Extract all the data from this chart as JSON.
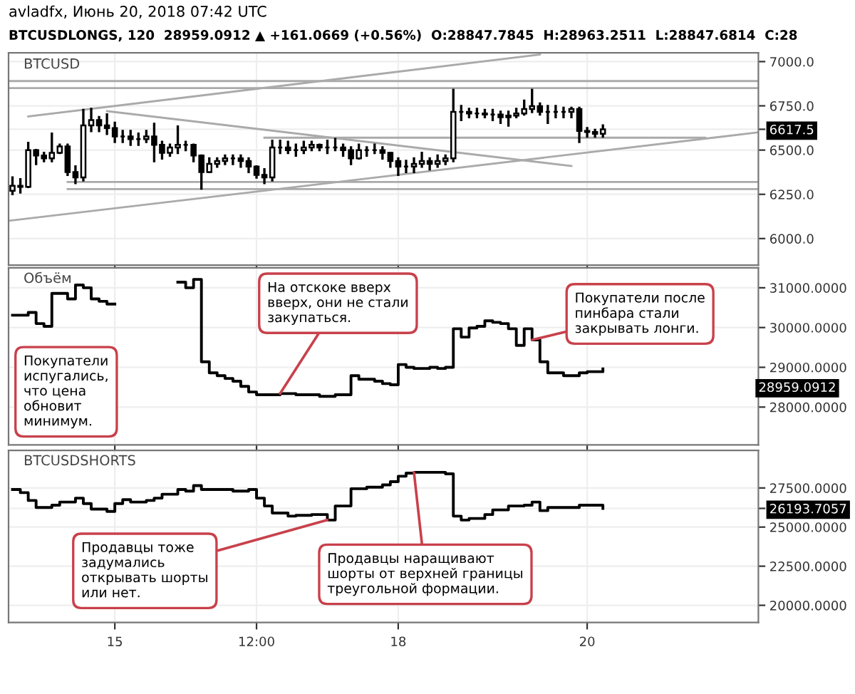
{
  "chart_data": [
    {
      "type": "other",
      "title": "avladfx, Июнь 20, 2018 07:42 UTC",
      "subtitle": "BTCUSDLONGS, 120  28959.0912 ▲ +161.0669 (+0.56%)  O:28847.7845  H:28963.2511  L:28847.6814  C:28"
    },
    {
      "type": "candlestick",
      "title": "BTCUSD",
      "color": "#000000",
      "tick_labels": "y",
      "grid": true,
      "xlim": [
        "2018-06-13T21:00",
        "2018-06-21T19:30"
      ],
      "ylim": [
        5850,
        7050
      ],
      "yticks": [
        {
          "value": 6000,
          "label": "6000.0"
        },
        {
          "value": 6250,
          "label": "6250.0"
        },
        {
          "value": 6500,
          "label": "6500.0"
        },
        {
          "value": 6617.5,
          "label": "6617.5"
        },
        {
          "value": 6750,
          "label": "6750.0"
        },
        {
          "value": 7000,
          "label": "7000.0"
        }
      ],
      "x": [
        "2018-06-13T22:00",
        "2018-06-14T00:00",
        "2018-06-14T02:00",
        "2018-06-14T04:00",
        "2018-06-14T06:00",
        "2018-06-14T08:00",
        "2018-06-14T10:00",
        "2018-06-14T12:00",
        "2018-06-14T14:00",
        "2018-06-14T16:00",
        "2018-06-14T18:00",
        "2018-06-14T20:00",
        "2018-06-14T22:00",
        "2018-06-15T00:00",
        "2018-06-15T02:00",
        "2018-06-15T04:00",
        "2018-06-15T06:00",
        "2018-06-15T08:00",
        "2018-06-15T10:00",
        "2018-06-15T12:00",
        "2018-06-15T14:00",
        "2018-06-15T16:00",
        "2018-06-15T18:00",
        "2018-06-15T20:00",
        "2018-06-15T22:00",
        "2018-06-16T00:00",
        "2018-06-16T02:00",
        "2018-06-16T04:00",
        "2018-06-16T06:00",
        "2018-06-16T08:00",
        "2018-06-16T10:00",
        "2018-06-16T12:00",
        "2018-06-16T14:00",
        "2018-06-16T16:00",
        "2018-06-16T18:00",
        "2018-06-16T20:00",
        "2018-06-16T22:00",
        "2018-06-17T00:00",
        "2018-06-17T02:00",
        "2018-06-17T04:00",
        "2018-06-17T06:00",
        "2018-06-17T08:00",
        "2018-06-17T10:00",
        "2018-06-17T12:00",
        "2018-06-17T14:00",
        "2018-06-17T16:00",
        "2018-06-17T18:00",
        "2018-06-17T20:00",
        "2018-06-17T22:00",
        "2018-06-18T00:00",
        "2018-06-18T02:00",
        "2018-06-18T04:00",
        "2018-06-18T06:00",
        "2018-06-18T08:00",
        "2018-06-18T10:00",
        "2018-06-18T12:00",
        "2018-06-18T14:00",
        "2018-06-18T16:00",
        "2018-06-18T18:00",
        "2018-06-18T20:00",
        "2018-06-18T22:00",
        "2018-06-19T00:00",
        "2018-06-19T02:00",
        "2018-06-19T04:00",
        "2018-06-19T06:00",
        "2018-06-19T08:00",
        "2018-06-19T10:00",
        "2018-06-19T12:00",
        "2018-06-19T14:00",
        "2018-06-19T16:00",
        "2018-06-19T18:00",
        "2018-06-19T20:00",
        "2018-06-19T22:00",
        "2018-06-20T00:00",
        "2018-06-20T02:00",
        "2018-06-20T04:00"
      ],
      "ohlc": [
        [
          6270,
          6345,
          6252,
          6298
        ],
        [
          6298,
          6335,
          6261,
          6292
        ],
        [
          6292,
          6540,
          6292,
          6500
        ],
        [
          6500,
          6500,
          6422,
          6469
        ],
        [
          6469,
          6484,
          6438,
          6453
        ],
        [
          6453,
          6592,
          6438,
          6484
        ],
        [
          6484,
          6530,
          6484,
          6521
        ],
        [
          6521,
          6530,
          6360,
          6376
        ],
        [
          6376,
          6407,
          6314,
          6345
        ],
        [
          6345,
          6726,
          6329,
          6639
        ],
        [
          6639,
          6732,
          6608,
          6670
        ],
        [
          6670,
          6686,
          6608,
          6639
        ],
        [
          6639,
          6701,
          6592,
          6624
        ],
        [
          6624,
          6654,
          6546,
          6577
        ],
        [
          6577,
          6608,
          6546,
          6577
        ],
        [
          6577,
          6608,
          6530,
          6562
        ],
        [
          6562,
          6592,
          6530,
          6562
        ],
        [
          6562,
          6608,
          6546,
          6577
        ],
        [
          6577,
          6648,
          6438,
          6530
        ],
        [
          6530,
          6546,
          6453,
          6484
        ],
        [
          6484,
          6530,
          6469,
          6515
        ],
        [
          6515,
          6633,
          6484,
          6530
        ],
        [
          6530,
          6546,
          6500,
          6530
        ],
        [
          6530,
          6530,
          6438,
          6469
        ],
        [
          6469,
          6469,
          6283,
          6376
        ],
        [
          6376,
          6453,
          6376,
          6422
        ],
        [
          6422,
          6453,
          6407,
          6438
        ],
        [
          6438,
          6469,
          6422,
          6453
        ],
        [
          6453,
          6469,
          6422,
          6453
        ],
        [
          6453,
          6469,
          6407,
          6438
        ],
        [
          6438,
          6453,
          6376,
          6407
        ],
        [
          6407,
          6407,
          6345,
          6360
        ],
        [
          6360,
          6391,
          6314,
          6345
        ],
        [
          6345,
          6552,
          6329,
          6515
        ],
        [
          6515,
          6552,
          6484,
          6515
        ],
        [
          6515,
          6546,
          6484,
          6500
        ],
        [
          6500,
          6530,
          6469,
          6500
        ],
        [
          6500,
          6546,
          6484,
          6515
        ],
        [
          6515,
          6546,
          6500,
          6530
        ],
        [
          6530,
          6530,
          6500,
          6515
        ],
        [
          6515,
          6552,
          6484,
          6515
        ],
        [
          6515,
          6562,
          6500,
          6515
        ],
        [
          6515,
          6530,
          6469,
          6500
        ],
        [
          6500,
          6515,
          6422,
          6453
        ],
        [
          6453,
          6530,
          6453,
          6500
        ],
        [
          6500,
          6515,
          6469,
          6500
        ],
        [
          6500,
          6530,
          6484,
          6500
        ],
        [
          6500,
          6515,
          6453,
          6484
        ],
        [
          6484,
          6484,
          6407,
          6438
        ],
        [
          6438,
          6453,
          6360,
          6407
        ],
        [
          6407,
          6438,
          6376,
          6407
        ],
        [
          6407,
          6453,
          6376,
          6422
        ],
        [
          6422,
          6484,
          6407,
          6438
        ],
        [
          6438,
          6453,
          6391,
          6422
        ],
        [
          6422,
          6469,
          6407,
          6438
        ],
        [
          6438,
          6469,
          6422,
          6453
        ],
        [
          6453,
          6840,
          6438,
          6716
        ],
        [
          6716,
          6748,
          6670,
          6716
        ],
        [
          6716,
          6732,
          6686,
          6707
        ],
        [
          6707,
          6732,
          6686,
          6707
        ],
        [
          6707,
          6726,
          6686,
          6701
        ],
        [
          6701,
          6726,
          6670,
          6701
        ],
        [
          6701,
          6716,
          6654,
          6686
        ],
        [
          6686,
          6716,
          6639,
          6695
        ],
        [
          6695,
          6732,
          6686,
          6707
        ],
        [
          6707,
          6779,
          6701,
          6732
        ],
        [
          6732,
          6840,
          6716,
          6748
        ],
        [
          6748,
          6763,
          6701,
          6716
        ],
        [
          6716,
          6748,
          6654,
          6716
        ],
        [
          6716,
          6748,
          6686,
          6716
        ],
        [
          6716,
          6738,
          6686,
          6716
        ],
        [
          6716,
          6738,
          6686,
          6732
        ],
        [
          6732,
          6738,
          6546,
          6608
        ],
        [
          6608,
          6624,
          6577,
          6602
        ],
        [
          6602,
          6614,
          6577,
          6592
        ],
        [
          6592,
          6639,
          6577,
          6617.5
        ]
      ],
      "series": [
        {
          "type": "line",
          "color": "#aaaaaa",
          "x": [
            "2018-06-13T21:00",
            "2018-06-21T19:30"
          ],
          "values": [
            6100,
            6600
          ]
        },
        {
          "type": "line",
          "color": "#aaaaaa",
          "x": [
            "2018-06-14T02:00",
            "2018-06-19T12:00"
          ],
          "values": [
            6690,
            7040
          ]
        },
        {
          "type": "line",
          "color": "#aaaaaa",
          "x": [
            "2018-06-14T22:00",
            "2018-06-19T20:00"
          ],
          "values": [
            6720,
            6410
          ]
        },
        {
          "type": "line",
          "color": "#aaaaaa",
          "x": [
            "2018-06-13T21:00",
            "2018-06-21T19:30"
          ],
          "values": [
            6890,
            6890
          ]
        },
        {
          "type": "line",
          "color": "#aaaaaa",
          "x": [
            "2018-06-13T21:00",
            "2018-06-21T19:30"
          ],
          "values": [
            6850,
            6850
          ]
        },
        {
          "type": "line",
          "color": "#aaaaaa",
          "x": [
            "2018-06-14T12:00",
            "2018-06-21T19:30"
          ],
          "values": [
            6320,
            6320
          ]
        },
        {
          "type": "line",
          "color": "#aaaaaa",
          "x": [
            "2018-06-14T12:00",
            "2018-06-21T19:30"
          ],
          "values": [
            6280,
            6280
          ]
        },
        {
          "type": "line",
          "color": "#aaaaaa",
          "x": [
            "2018-06-16T14:00",
            "2018-06-21T06:00"
          ],
          "values": [
            6570,
            6570
          ]
        }
      ]
    },
    {
      "type": "step",
      "title": "Объём",
      "tick_labels": "y",
      "grid": true,
      "xlim": [
        "2018-06-13T21:00",
        "2018-06-21T19:30"
      ],
      "ylim": [
        27050,
        31500
      ],
      "yticks": [
        {
          "value": 28000,
          "label": "28000.0000"
        },
        {
          "value": 29000,
          "label": "29000.0000"
        },
        {
          "value": 30000,
          "label": "30000.0000"
        },
        {
          "value": 31000,
          "label": "31000.0000"
        }
      ],
      "series": [
        {
          "color": "#000000",
          "x": [
            "2018-06-13T22:00",
            "2018-06-14T02:00",
            "2018-06-14T04:00",
            "2018-06-14T06:00",
            "2018-06-14T08:00",
            "2018-06-14T12:00",
            "2018-06-14T14:00",
            "2018-06-14T16:00",
            "2018-06-14T18:00",
            "2018-06-14T20:00",
            "2018-06-14T22:00",
            "2018-06-15T00:00",
            "2018-06-15T16:00",
            "2018-06-15T18:00",
            "2018-06-15T20:00",
            "2018-06-15T22:00",
            "2018-06-16T00:00",
            "2018-06-16T02:00",
            "2018-06-16T04:00",
            "2018-06-16T06:00",
            "2018-06-16T08:00",
            "2018-06-16T10:00",
            "2018-06-16T12:00",
            "2018-06-16T18:00",
            "2018-06-16T22:00",
            "2018-06-17T04:00",
            "2018-06-17T08:00",
            "2018-06-17T12:00",
            "2018-06-17T14:00",
            "2018-06-17T18:00",
            "2018-06-17T20:00",
            "2018-06-17T22:00",
            "2018-06-18T00:00",
            "2018-06-18T02:00",
            "2018-06-18T04:00",
            "2018-06-18T08:00",
            "2018-06-18T10:00",
            "2018-06-18T12:00",
            "2018-06-18T14:00",
            "2018-06-18T16:00",
            "2018-06-18T18:00",
            "2018-06-18T20:00",
            "2018-06-18T22:00",
            "2018-06-19T00:00",
            "2018-06-19T02:00",
            "2018-06-19T04:00",
            "2018-06-19T06:00",
            "2018-06-19T08:00",
            "2018-06-19T10:00",
            "2018-06-19T12:00",
            "2018-06-19T14:00",
            "2018-06-19T18:00",
            "2018-06-19T22:00",
            "2018-06-20T00:00",
            "2018-06-20T04:00"
          ],
          "values": [
            30310,
            30380,
            30100,
            30030,
            30860,
            30720,
            31070,
            31000,
            30720,
            30660,
            30590,
            null,
            31140,
            31000,
            31210,
            29140,
            28860,
            28790,
            28720,
            28650,
            28520,
            28380,
            28310,
            28340,
            28310,
            28270,
            28310,
            28790,
            28700,
            28650,
            28590,
            28560,
            29070,
            29000,
            28970,
            29000,
            28970,
            29000,
            29970,
            29760,
            29990,
            30030,
            30170,
            30130,
            30100,
            29970,
            29550,
            29970,
            29690,
            29140,
            28860,
            28790,
            28860,
            28890,
            28959.0912
          ]
        }
      ],
      "annotations": [
        "28959.0912",
        "Покупатели испугались, что цена обновит минимум.",
        {
          "text": "На отскоке вверх вверх, они не стали закупаться.",
          "x": "2018-06-16T18:00",
          "y": 28340
        },
        {
          "text": "Покупатели после пинбара стали закрывать лонги.",
          "x": "2018-06-19T10:00",
          "y": 29690
        }
      ]
    },
    {
      "type": "step",
      "title": "BTCUSDSHORTS",
      "grid": true,
      "xlim": [
        "2018-06-13T21:00",
        "2018-06-21T19:30"
      ],
      "xticks": [
        {
          "value": "2018-06-15",
          "label": "15"
        },
        {
          "value": "2018-06-16T12:00",
          "label": "12:00"
        },
        {
          "value": "2018-06-18",
          "label": "18"
        },
        {
          "value": "2018-06-20",
          "label": "20"
        }
      ],
      "ylim": [
        18900,
        29900
      ],
      "yticks": [
        {
          "value": 20000,
          "label": "20000.0000"
        },
        {
          "value": 22500,
          "label": "22500.0000"
        },
        {
          "value": 25000,
          "label": "25000.0000"
        },
        {
          "value": 26193.7057,
          "label": "26193.7057"
        },
        {
          "value": 27500,
          "label": "27500.0000"
        }
      ],
      "series": [
        {
          "color": "#000000",
          "x": [
            "2018-06-13T22:00",
            "2018-06-14T00:00",
            "2018-06-14T02:00",
            "2018-06-14T04:00",
            "2018-06-14T08:00",
            "2018-06-14T10:00",
            "2018-06-14T14:00",
            "2018-06-14T16:00",
            "2018-06-14T18:00",
            "2018-06-14T22:00",
            "2018-06-15T00:00",
            "2018-06-15T02:00",
            "2018-06-15T04:00",
            "2018-06-15T08:00",
            "2018-06-15T10:00",
            "2018-06-15T12:00",
            "2018-06-15T16:00",
            "2018-06-15T18:00",
            "2018-06-15T20:00",
            "2018-06-15T22:00",
            "2018-06-16T06:00",
            "2018-06-16T10:00",
            "2018-06-16T12:00",
            "2018-06-16T14:00",
            "2018-06-16T16:00",
            "2018-06-16T20:00",
            "2018-06-16T22:00",
            "2018-06-17T02:00",
            "2018-06-17T06:00",
            "2018-06-17T08:00",
            "2018-06-17T12:00",
            "2018-06-17T16:00",
            "2018-06-17T20:00",
            "2018-06-17T22:00",
            "2018-06-18T00:00",
            "2018-06-18T02:00",
            "2018-06-18T04:00",
            "2018-06-18T12:00",
            "2018-06-18T14:00",
            "2018-06-18T16:00",
            "2018-06-18T18:00",
            "2018-06-18T22:00",
            "2018-06-19T00:00",
            "2018-06-19T04:00",
            "2018-06-19T08:00",
            "2018-06-19T10:00",
            "2018-06-19T12:00",
            "2018-06-19T14:00",
            "2018-06-19T22:00",
            "2018-06-20T04:00"
          ],
          "values": [
            27400,
            27200,
            26700,
            26250,
            26400,
            26600,
            26850,
            26500,
            26150,
            26000,
            26500,
            26750,
            26600,
            26700,
            26850,
            27100,
            27400,
            27300,
            27650,
            27400,
            27300,
            27400,
            26850,
            26350,
            25900,
            25700,
            25750,
            25800,
            25450,
            26350,
            27450,
            27550,
            27700,
            27900,
            28250,
            28450,
            28500,
            28400,
            25700,
            25450,
            25550,
            25800,
            26100,
            26350,
            26400,
            26600,
            26050,
            26250,
            26400,
            26193.7057
          ]
        }
      ],
      "annotations": [
        {
          "text": "Продавцы тоже задумались открывать шорты или нет.",
          "x": "2018-06-17T06:00",
          "y": 25450
        },
        {
          "text": "Продавцы наращивают шорты от верхней границы треугольной формации.",
          "x": "2018-06-18T04:00",
          "y": 28500
        }
      ]
    }
  ]
}
